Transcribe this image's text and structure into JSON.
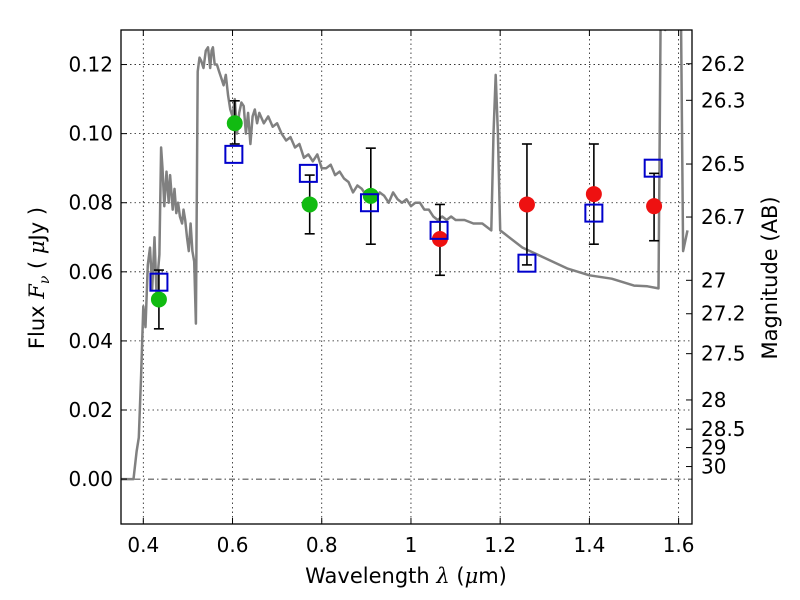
{
  "chart_data": {
    "type": "scatter",
    "title": "",
    "xlabel": "Wavelength  λ (μm)",
    "ylabel": "Flux  F_ν  ( μJy )",
    "ylabel_parts": {
      "pre": "Flux  ",
      "var": "F",
      "sub": "ν",
      "post": "  ( ",
      "mu": "μ",
      "unit": "Jy )"
    },
    "xlabel_parts": {
      "pre": "Wavelength  ",
      "var": "λ",
      "post": " (",
      "mu": "μ",
      "unit": "m)"
    },
    "y2label": "Magnitude (AB)",
    "xlim": [
      0.35,
      1.63
    ],
    "ylim": [
      -0.013,
      0.13
    ],
    "grid": true,
    "x_ticks": [
      {
        "value": 0.4,
        "label": "0.4"
      },
      {
        "value": 0.6,
        "label": "0.6"
      },
      {
        "value": 0.8,
        "label": "0.8"
      },
      {
        "value": 1.0,
        "label": "1"
      },
      {
        "value": 1.2,
        "label": "1.2"
      },
      {
        "value": 1.4,
        "label": "1.4"
      },
      {
        "value": 1.6,
        "label": "1.6"
      }
    ],
    "y_ticks": [
      {
        "value": 0.0,
        "label": "0.00"
      },
      {
        "value": 0.02,
        "label": "0.02"
      },
      {
        "value": 0.04,
        "label": "0.04"
      },
      {
        "value": 0.06,
        "label": "0.06"
      },
      {
        "value": 0.08,
        "label": "0.08"
      },
      {
        "value": 0.1,
        "label": "0.10"
      },
      {
        "value": 0.12,
        "label": "0.12"
      }
    ],
    "magnitude_ticks": [
      {
        "value": 26.2,
        "label": "26.2"
      },
      {
        "value": 26.3,
        "label": "26.3"
      },
      {
        "value": 26.5,
        "label": "26.5"
      },
      {
        "value": 26.7,
        "label": "26.7"
      },
      {
        "value": 27.0,
        "label": "27"
      },
      {
        "value": 27.2,
        "label": "27.2"
      },
      {
        "value": 27.5,
        "label": "27.5"
      },
      {
        "value": 28.0,
        "label": "28"
      },
      {
        "value": 28.5,
        "label": "28.5"
      },
      {
        "value": 29.0,
        "label": "29"
      },
      {
        "value": 30.0,
        "label": "30"
      }
    ],
    "colors": {
      "model": "#808080",
      "green": "#11bb11",
      "red": "#ee1111",
      "model_box": "#0000cc",
      "errorbar": "#000000"
    },
    "model_spectrum": {
      "x": [
        0.35,
        0.378,
        0.385,
        0.39,
        0.395,
        0.4,
        0.405,
        0.41,
        0.415,
        0.42,
        0.425,
        0.43,
        0.433,
        0.436,
        0.44,
        0.443,
        0.447,
        0.452,
        0.457,
        0.46,
        0.463,
        0.466,
        0.47,
        0.474,
        0.478,
        0.482,
        0.487,
        0.49,
        0.494,
        0.498,
        0.502,
        0.506,
        0.51,
        0.514,
        0.518,
        0.522,
        0.526,
        0.53,
        0.535,
        0.54,
        0.545,
        0.55,
        0.553,
        0.556,
        0.56,
        0.565,
        0.57,
        0.575,
        0.58,
        0.585,
        0.59,
        0.595,
        0.6,
        0.605,
        0.61,
        0.615,
        0.62,
        0.625,
        0.63,
        0.635,
        0.64,
        0.645,
        0.65,
        0.655,
        0.66,
        0.67,
        0.68,
        0.69,
        0.7,
        0.71,
        0.72,
        0.73,
        0.74,
        0.75,
        0.76,
        0.77,
        0.78,
        0.79,
        0.8,
        0.81,
        0.82,
        0.83,
        0.84,
        0.85,
        0.86,
        0.87,
        0.88,
        0.89,
        0.9,
        0.91,
        0.92,
        0.93,
        0.94,
        0.95,
        0.96,
        0.97,
        0.98,
        0.99,
        1.0,
        1.01,
        1.02,
        1.03,
        1.04,
        1.05,
        1.06,
        1.07,
        1.08,
        1.09,
        1.1,
        1.12,
        1.14,
        1.16,
        1.18,
        1.185,
        1.19,
        1.195,
        1.2,
        1.21,
        1.25,
        1.3,
        1.35,
        1.4,
        1.45,
        1.5,
        1.53,
        1.555,
        1.56,
        1.565,
        1.57,
        1.6,
        1.605,
        1.61,
        1.62
      ],
      "y": [
        0.0,
        0.0,
        0.008,
        0.012,
        0.03,
        0.05,
        0.044,
        0.062,
        0.067,
        0.055,
        0.07,
        0.052,
        0.06,
        0.065,
        0.096,
        0.09,
        0.079,
        0.089,
        0.08,
        0.088,
        0.083,
        0.078,
        0.084,
        0.077,
        0.08,
        0.076,
        0.074,
        0.078,
        0.075,
        0.07,
        0.066,
        0.074,
        0.066,
        0.063,
        0.045,
        0.118,
        0.122,
        0.121,
        0.119,
        0.124,
        0.125,
        0.119,
        0.124,
        0.125,
        0.12,
        0.12,
        0.118,
        0.116,
        0.114,
        0.117,
        0.111,
        0.107,
        0.105,
        0.11,
        0.1,
        0.106,
        0.109,
        0.108,
        0.1,
        0.106,
        0.097,
        0.105,
        0.107,
        0.103,
        0.106,
        0.103,
        0.105,
        0.102,
        0.103,
        0.1,
        0.098,
        0.099,
        0.096,
        0.097,
        0.093,
        0.094,
        0.092,
        0.094,
        0.09,
        0.09,
        0.091,
        0.088,
        0.089,
        0.087,
        0.086,
        0.083,
        0.085,
        0.084,
        0.082,
        0.084,
        0.081,
        0.083,
        0.082,
        0.08,
        0.083,
        0.081,
        0.08,
        0.081,
        0.079,
        0.08,
        0.08,
        0.078,
        0.078,
        0.076,
        0.075,
        0.076,
        0.075,
        0.076,
        0.075,
        0.075,
        0.074,
        0.074,
        0.072,
        0.1,
        0.117,
        0.1,
        0.072,
        0.071,
        0.067,
        0.064,
        0.061,
        0.059,
        0.058,
        0.056,
        0.0558,
        0.0552,
        0.14,
        0.14,
        0.13,
        0.14,
        0.14,
        0.066,
        0.072
      ]
    },
    "green_points": [
      {
        "x": 0.435,
        "y": 0.052
      },
      {
        "x": 0.605,
        "y": 0.103
      },
      {
        "x": 0.773,
        "y": 0.0795
      },
      {
        "x": 0.91,
        "y": 0.082
      }
    ],
    "red_points": [
      {
        "x": 1.065,
        "y": 0.0695
      },
      {
        "x": 1.26,
        "y": 0.0795
      },
      {
        "x": 1.41,
        "y": 0.0825
      },
      {
        "x": 1.545,
        "y": 0.079
      }
    ],
    "model_boxes": [
      {
        "x": 0.435,
        "y": 0.057
      },
      {
        "x": 0.603,
        "y": 0.094
      },
      {
        "x": 0.77,
        "y": 0.0885
      },
      {
        "x": 0.907,
        "y": 0.08
      },
      {
        "x": 1.063,
        "y": 0.072
      },
      {
        "x": 1.26,
        "y": 0.0625
      },
      {
        "x": 1.41,
        "y": 0.077
      },
      {
        "x": 1.543,
        "y": 0.09
      }
    ],
    "error_bars": [
      {
        "x": 0.435,
        "low": 0.0435,
        "high": 0.0605
      },
      {
        "x": 0.605,
        "low": 0.097,
        "high": 0.1095
      },
      {
        "x": 0.773,
        "low": 0.071,
        "high": 0.088
      },
      {
        "x": 0.91,
        "low": 0.068,
        "high": 0.0958
      },
      {
        "x": 1.065,
        "low": 0.059,
        "high": 0.0795
      },
      {
        "x": 1.26,
        "low": 0.062,
        "high": 0.097
      },
      {
        "x": 1.41,
        "low": 0.068,
        "high": 0.097
      },
      {
        "x": 1.545,
        "low": 0.069,
        "high": 0.0885
      }
    ]
  }
}
